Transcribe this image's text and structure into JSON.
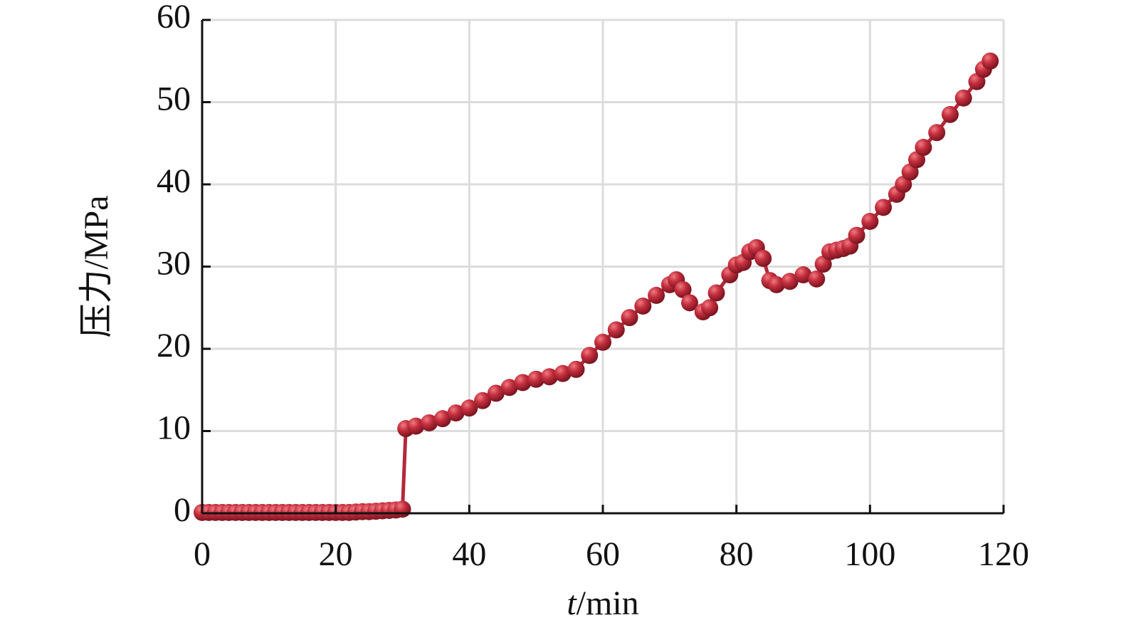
{
  "chart_data": {
    "type": "line",
    "x_label": "t/min",
    "y_label": "压力/MPa",
    "x": [
      0,
      1,
      2,
      3,
      4,
      5,
      6,
      7,
      8,
      9,
      10,
      11,
      12,
      13,
      14,
      15,
      16,
      17,
      18,
      19,
      20,
      21,
      22,
      23,
      24,
      25,
      26,
      27,
      28,
      29,
      30,
      30.5,
      32,
      34,
      36,
      38,
      40,
      42,
      44,
      46,
      48,
      50,
      52,
      54,
      56,
      58,
      60,
      62,
      64,
      66,
      68,
      70,
      71,
      72,
      73,
      75,
      76,
      77,
      79,
      80,
      81,
      82,
      83,
      84,
      85,
      86,
      88,
      90,
      92,
      93,
      94,
      95,
      96,
      97,
      98,
      100,
      102,
      104,
      105,
      106,
      107,
      108,
      110,
      112,
      114,
      116,
      117,
      118
    ],
    "values": [
      0.1,
      0.1,
      0.1,
      0.1,
      0.1,
      0.1,
      0.1,
      0.1,
      0.1,
      0.1,
      0.1,
      0.1,
      0.1,
      0.1,
      0.1,
      0.1,
      0.1,
      0.1,
      0.1,
      0.1,
      0.1,
      0.1,
      0.1,
      0.15,
      0.2,
      0.2,
      0.25,
      0.3,
      0.35,
      0.4,
      0.5,
      10.3,
      10.6,
      11,
      11.5,
      12.2,
      12.8,
      13.7,
      14.6,
      15.3,
      15.9,
      16.3,
      16.6,
      17,
      17.5,
      19.2,
      20.8,
      22.3,
      23.8,
      25.2,
      26.5,
      27.8,
      28.4,
      27.2,
      25.6,
      24.5,
      25,
      26.8,
      29,
      30.2,
      30.5,
      31.8,
      32.3,
      31,
      28.3,
      27.8,
      28.2,
      29,
      28.5,
      30.3,
      31.8,
      32,
      32.2,
      32.5,
      33.8,
      35.5,
      37.2,
      38.8,
      40,
      41.5,
      43,
      44.5,
      46.3,
      48.5,
      50.5,
      52.5,
      54,
      55
    ],
    "color": "#b3283a",
    "xlim": [
      0,
      120
    ],
    "xticks": [
      0,
      20,
      40,
      60,
      80,
      100,
      120
    ],
    "ylim": [
      0,
      60
    ],
    "yticks": [
      0,
      10,
      20,
      30,
      40,
      50,
      60
    ],
    "grid": true
  }
}
